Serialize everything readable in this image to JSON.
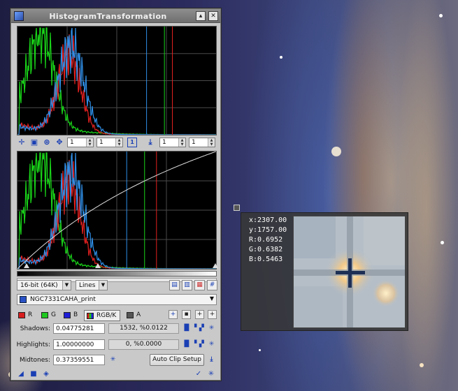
{
  "window": {
    "title": "HistogramTransformation",
    "logo_icon": "pixinsight-logo-icon",
    "shade_icon": "shade-icon",
    "close_icon": "close-icon"
  },
  "histogram_colors": {
    "red": "#e32020",
    "green": "#19d419",
    "blue": "#2f8fe8",
    "curve": "#dddddd",
    "grid": "#4a4a4a"
  },
  "zoom_toolbar": {
    "icons": [
      "crosshair-icon",
      "zoom-fit-icon",
      "zoom-in-icon",
      "pan-icon",
      "one-to-one-icon",
      "arrow-down-icon"
    ],
    "horizontal_zoom": "1",
    "vertical_zoom": "1",
    "output_horizontal_zoom": "1",
    "output_vertical_zoom": "1"
  },
  "settings": {
    "resolution": "16-bit (64K)",
    "graph_style": "Lines",
    "graph_icons": [
      "graph-style-icon-1",
      "graph-style-icon-2",
      "graph-style-icon-3",
      "grid-icon"
    ]
  },
  "view": {
    "name": "NGC7331CAHA_print"
  },
  "channels": [
    {
      "label": "R",
      "color": "#d81e1e"
    },
    {
      "label": "G",
      "color": "#1ec81e"
    },
    {
      "label": "B",
      "color": "#1e1ed8"
    },
    {
      "label": "RGB/K",
      "color": "#888888",
      "selected": true
    },
    {
      "label": "A",
      "color": "#555555"
    }
  ],
  "parameters": {
    "shadows_label": "Shadows:",
    "shadows_value": "0.04775281",
    "shadows_clip": "1532, %0.0122",
    "highlights_label": "Highlights:",
    "highlights_value": "1.00000000",
    "highlights_clip": "0, %0.0000",
    "midtones_label": "Midtones:",
    "midtones_value": "0.37359551",
    "auto_clip_label": "Auto Clip Setup"
  },
  "readout": {
    "x": "x:2307.00",
    "y": "y:1757.00",
    "r": "R:0.6952",
    "g": "G:0.6382",
    "b": "B:0.5463"
  }
}
